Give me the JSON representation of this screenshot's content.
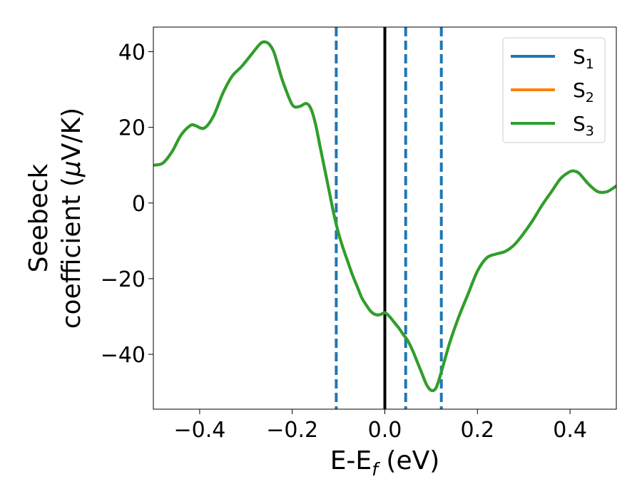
{
  "chart_data": {
    "type": "line",
    "title": "",
    "xlabel": "E-E",
    "xlabel_sub": "f",
    "xlabel_unit": " (eV)",
    "ylabel_line1": "Seebeck",
    "ylabel_line2_pre": "coefficient  (",
    "ylabel_mu": "μ",
    "ylabel_line2_post": "V/K)",
    "xlim": [
      -0.5,
      0.5
    ],
    "ylim": [
      -54.5,
      46.5
    ],
    "xticks": [
      -0.4,
      -0.2,
      0.0,
      0.2,
      0.4
    ],
    "xtick_labels": [
      "−0.4",
      "−0.2",
      "0.0",
      "0.2",
      "0.4"
    ],
    "yticks": [
      -40,
      -20,
      0,
      20,
      40
    ],
    "ytick_labels": [
      "−40",
      "−20",
      "0",
      "20",
      "40"
    ],
    "grid": false,
    "legend_position": "top-right",
    "fermi_line": {
      "x": 0.0,
      "color": "#000000"
    },
    "dashed_lines": [
      {
        "x": -0.105,
        "color": "#1f77b4"
      },
      {
        "x": 0.045,
        "color": "#1f77b4"
      },
      {
        "x": 0.122,
        "color": "#1f77b4"
      }
    ],
    "x": [
      -0.5,
      -0.48,
      -0.46,
      -0.44,
      -0.42,
      -0.41,
      -0.39,
      -0.37,
      -0.35,
      -0.33,
      -0.31,
      -0.29,
      -0.27,
      -0.26,
      -0.25,
      -0.24,
      -0.23,
      -0.22,
      -0.2,
      -0.185,
      -0.17,
      -0.16,
      -0.15,
      -0.14,
      -0.13,
      -0.12,
      -0.11,
      -0.1,
      -0.09,
      -0.08,
      -0.07,
      -0.06,
      -0.05,
      -0.04,
      -0.03,
      -0.02,
      -0.01,
      0.0,
      0.01,
      0.02,
      0.03,
      0.04,
      0.05,
      0.06,
      0.07,
      0.08,
      0.09,
      0.1,
      0.11,
      0.12,
      0.14,
      0.16,
      0.18,
      0.2,
      0.22,
      0.24,
      0.26,
      0.28,
      0.3,
      0.32,
      0.34,
      0.36,
      0.38,
      0.4,
      0.41,
      0.42,
      0.44,
      0.46,
      0.48,
      0.5
    ],
    "series": [
      {
        "name": "S",
        "name_sub": "1",
        "color": "#1f77b4",
        "values": [
          10,
          10.5,
          13.5,
          18,
          20.5,
          20.5,
          19.8,
          23,
          29,
          33.5,
          36,
          39,
          42,
          42.6,
          42,
          40,
          36,
          32,
          26,
          25.5,
          26.3,
          25,
          21,
          15,
          9,
          3,
          -3,
          -8,
          -12,
          -15.5,
          -19,
          -22,
          -25,
          -27,
          -28.7,
          -29.5,
          -29.5,
          -29,
          -30,
          -31.5,
          -33,
          -34.8,
          -36.5,
          -39,
          -42,
          -45,
          -48,
          -49.5,
          -49,
          -45.5,
          -37,
          -30,
          -24,
          -18,
          -14.5,
          -13.5,
          -12.8,
          -11,
          -8,
          -4.5,
          -0.5,
          3,
          6.5,
          8.3,
          8.4,
          7.8,
          5,
          3,
          3,
          4.5
        ]
      },
      {
        "name": "S",
        "name_sub": "2",
        "color": "#ff7f0e",
        "values": [
          10,
          10.5,
          13.5,
          18,
          20.5,
          20.5,
          19.8,
          23,
          29,
          33.5,
          36,
          39,
          42,
          42.6,
          42,
          40,
          36,
          32,
          26,
          25.5,
          26.3,
          25,
          21,
          15,
          9,
          3,
          -3,
          -8,
          -12,
          -15.5,
          -19,
          -22,
          -25,
          -27,
          -28.7,
          -29.5,
          -29.5,
          -29,
          -30,
          -31.5,
          -33,
          -34.8,
          -36.5,
          -39,
          -42,
          -45,
          -48,
          -49.5,
          -49,
          -45.5,
          -37,
          -30,
          -24,
          -18,
          -14.5,
          -13.5,
          -12.8,
          -11,
          -8,
          -4.5,
          -0.5,
          3,
          6.5,
          8.3,
          8.4,
          7.8,
          5,
          3,
          3,
          4.5
        ]
      },
      {
        "name": "S",
        "name_sub": "3",
        "color": "#2ca02c",
        "values": [
          10,
          10.5,
          13.5,
          18,
          20.5,
          20.5,
          19.8,
          23,
          29,
          33.5,
          36,
          39,
          42,
          42.6,
          42,
          40,
          36,
          32,
          26,
          25.5,
          26.3,
          25,
          21,
          15,
          9,
          3,
          -3,
          -8,
          -12,
          -15.5,
          -19,
          -22,
          -25,
          -27,
          -28.7,
          -29.5,
          -29.5,
          -29,
          -30,
          -31.5,
          -33,
          -34.8,
          -36.5,
          -39,
          -42,
          -45,
          -48,
          -49.5,
          -49,
          -45.5,
          -37,
          -30,
          -24,
          -18,
          -14.5,
          -13.5,
          -12.8,
          -11,
          -8,
          -4.5,
          -0.5,
          3,
          6.5,
          8.3,
          8.4,
          7.8,
          5,
          3,
          3,
          4.5
        ]
      }
    ]
  }
}
